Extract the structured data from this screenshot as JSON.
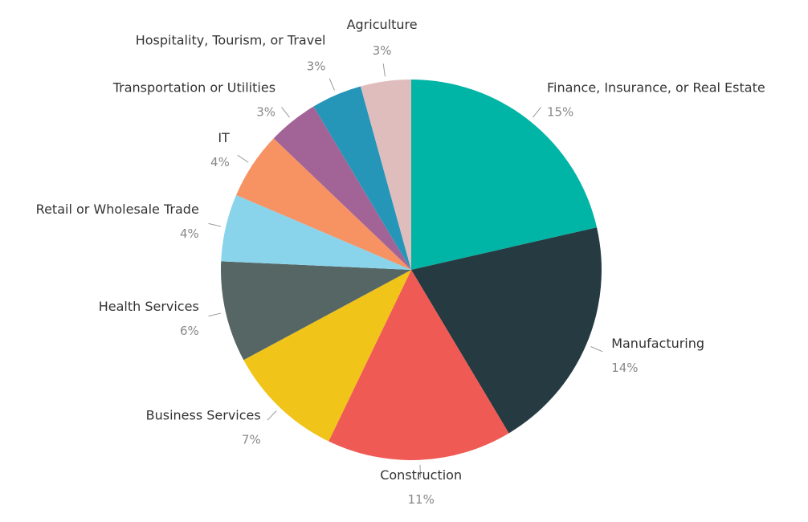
{
  "chart_data": {
    "type": "pie",
    "categories": [
      "Finance, Insurance, or Real Estate",
      "Manufacturing",
      "Construction",
      "Business Services",
      "Health Services",
      "Retail or Wholesale Trade",
      "IT",
      "Transportation or Utilities",
      "Hospitality, Tourism, or Travel",
      "Agriculture"
    ],
    "values": [
      15,
      14,
      11,
      7,
      6,
      4,
      4,
      3,
      3,
      3
    ],
    "value_labels": [
      "15%",
      "14%",
      "11%",
      "7%",
      "6%",
      "4%",
      "4%",
      "3%",
      "3%",
      "3%"
    ],
    "colors": [
      "#00b5a5",
      "#263a42",
      "#f05a55",
      "#f0c419",
      "#566665",
      "#8ad4eb",
      "#f79263",
      "#a26496",
      "#2596b8",
      "#dfbdbc"
    ]
  }
}
